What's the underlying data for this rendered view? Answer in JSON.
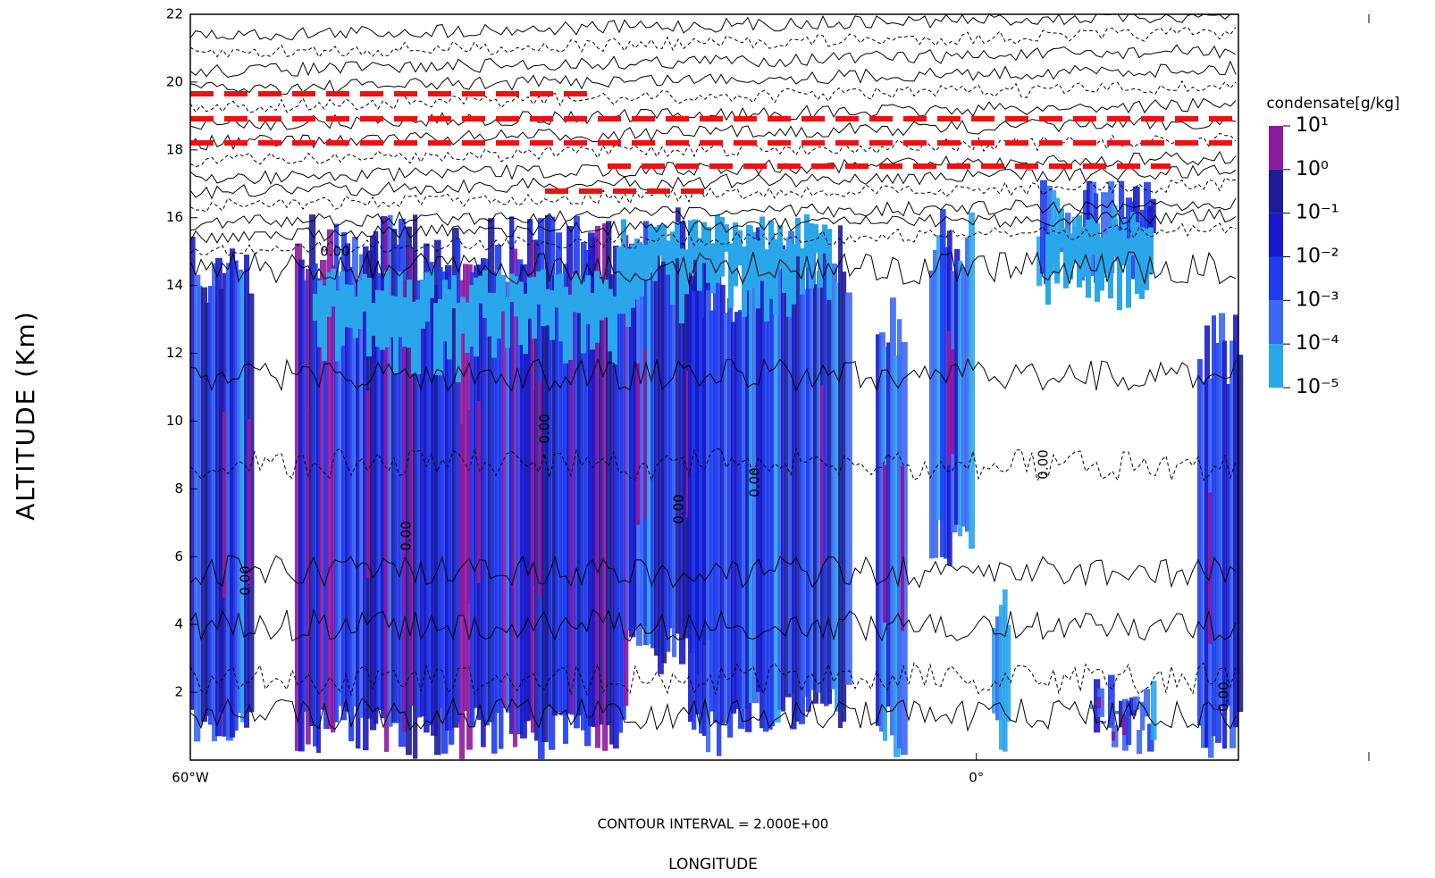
{
  "chart_data": {
    "type": "contour",
    "ylabel": "ALTITUDE (Km)",
    "xlabel": "LONGITUDE",
    "note": "CONTOUR INTERVAL = 2.000E+00",
    "xlim": [
      -60,
      20
    ],
    "xticks": [
      {
        "value": -60,
        "label": "60°W"
      },
      {
        "value": 0,
        "label": "0°"
      }
    ],
    "ylim": [
      0,
      22
    ],
    "yticks": [
      2,
      4,
      6,
      8,
      10,
      12,
      14,
      16,
      18,
      20,
      22
    ],
    "contour_labels": [
      "0.00",
      "0.00",
      "0.00",
      "0.00",
      "0.00",
      "0.00",
      "0.00",
      "0.00"
    ],
    "colorbar": {
      "label": "condensate[g/kg]",
      "log": true,
      "lim": [
        1e-05,
        10
      ],
      "ticks": [
        {
          "value": 10,
          "label": "10¹"
        },
        {
          "value": 1,
          "label": "10⁰"
        },
        {
          "value": 0.1,
          "label": "10⁻¹"
        },
        {
          "value": 0.01,
          "label": "10⁻²"
        },
        {
          "value": 0.001,
          "label": "10⁻³"
        },
        {
          "value": 0.0001,
          "label": "10⁻⁴"
        },
        {
          "value": 1e-05,
          "label": "10⁻⁵"
        }
      ],
      "colors": [
        "#8e1a9e",
        "#1c1c98",
        "#1a1ac8",
        "#1e3cee",
        "#3a68f2",
        "#2aa6ea"
      ]
    }
  }
}
